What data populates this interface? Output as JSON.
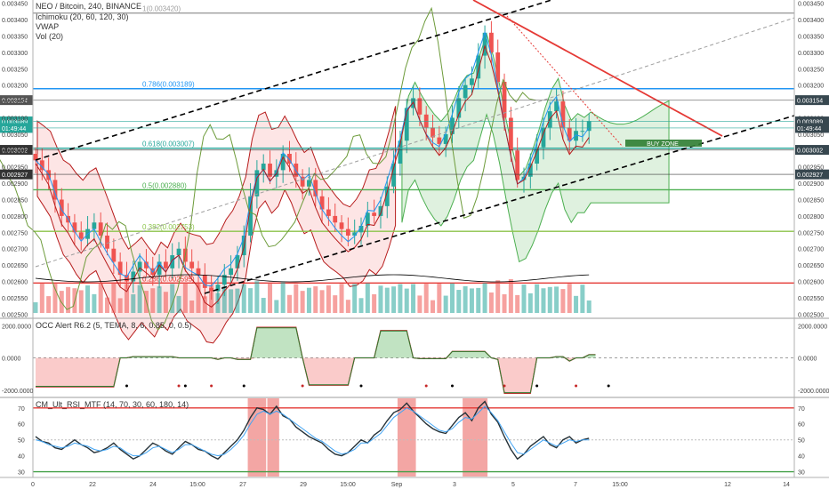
{
  "chart_data": [
    {
      "type": "line",
      "title": "NEO / Bitcoin, 240, BINANCE",
      "indicators": [
        "Ichimoku (20, 60, 120, 30)",
        "VWAP",
        "Vol (20)"
      ],
      "x_tick_labels": [
        "0",
        "22",
        "24",
        "15:00",
        "27",
        "29",
        "15:00",
        "Sep",
        "3",
        "5",
        "7",
        "15:00",
        "12",
        "14"
      ],
      "y_tick_labels": [
        "0.003450",
        "0.003400",
        "0.003350",
        "0.003300",
        "0.003250",
        "0.003200",
        "0.003150",
        "0.003100",
        "0.003050",
        "0.003000",
        "0.002950",
        "0.002900",
        "0.002850",
        "0.002800",
        "0.002750",
        "0.002700",
        "0.002650",
        "0.002600",
        "0.002550",
        "0.002500"
      ],
      "ylim": [
        0.00249,
        0.00346
      ],
      "price_badges": [
        {
          "label": "0.003154",
          "value": 0.003154,
          "color": "#555555"
        },
        {
          "label": "0.003089",
          "value": 0.003089,
          "color": "#26a69a"
        },
        {
          "label": "01:49:44",
          "value": 0.003069,
          "color": "#26a69a"
        },
        {
          "label": "0.003002",
          "value": 0.003002,
          "color": "#333333"
        },
        {
          "label": "0.002927",
          "value": 0.002927,
          "color": "#333333"
        }
      ],
      "right_labels": [
        {
          "label": "0.003154",
          "value": 0.003154
        },
        {
          "label": "0.003089",
          "value": 0.003089
        },
        {
          "label": "01:49:44",
          "value": 0.003069
        },
        {
          "label": "0.003002",
          "value": 0.003002
        },
        {
          "label": "0.002927",
          "value": 0.002927
        }
      ],
      "fib_levels": [
        {
          "label": "1(0.003420)",
          "value": 0.00342,
          "color": "#9e9e9e"
        },
        {
          "label": "0.786(0.003189)",
          "value": 0.003189,
          "color": "#2196f3"
        },
        {
          "label": "0.618(0.003007)",
          "value": 0.003007,
          "color": "#26a69a"
        },
        {
          "label": "0.5(0.002880)",
          "value": 0.00288,
          "color": "#4caf50"
        },
        {
          "label": "0.382(0.002753)",
          "value": 0.002753,
          "color": "#8bc34a"
        },
        {
          "label": "0.236(0.002595)",
          "value": 0.002595,
          "color": "#e53935"
        }
      ],
      "buy_zone_label": "BUY ZONE",
      "close_series": [
        0.00297,
        0.00294,
        0.00291,
        0.00285,
        0.0028,
        0.00278,
        0.00275,
        0.00273,
        0.00276,
        0.00278,
        0.00274,
        0.0027,
        0.00266,
        0.00262,
        0.0026,
        0.00263,
        0.00266,
        0.00264,
        0.00262,
        0.00266,
        0.00264,
        0.00268,
        0.0027,
        0.00266,
        0.00264,
        0.00262,
        0.00258,
        0.00257,
        0.00259,
        0.00262,
        0.00264,
        0.00268,
        0.00274,
        0.00286,
        0.00294,
        0.00296,
        0.00292,
        0.00294,
        0.00299,
        0.00296,
        0.00292,
        0.00289,
        0.00291,
        0.00286,
        0.00282,
        0.0028,
        0.00278,
        0.00276,
        0.00274,
        0.00275,
        0.00277,
        0.00281,
        0.0028,
        0.00283,
        0.00289,
        0.00296,
        0.00303,
        0.00313,
        0.00316,
        0.00311,
        0.00307,
        0.00304,
        0.00302,
        0.00305,
        0.0031,
        0.00316,
        0.0032,
        0.00322,
        0.00329,
        0.00336,
        0.0033,
        0.00321,
        0.0031,
        0.003,
        0.00291,
        0.00292,
        0.00296,
        0.00301,
        0.00307,
        0.00312,
        0.00315,
        0.00307,
        0.00303,
        0.00306,
        0.00306,
        0.00309
      ]
    },
    {
      "type": "line",
      "title": "OCC Alert R6.2 (5, TEMA, 8, 6, 0.85, 0, 0.5)",
      "y_tick_labels": [
        "2000.0000",
        "0.0000",
        "-2000.0000"
      ],
      "ylim": [
        -2400,
        2400
      ],
      "values": [
        -1800,
        -1800,
        -1800,
        -1800,
        -1800,
        -1800,
        -1800,
        -1800,
        -1800,
        -1800,
        -1800,
        -1800,
        -1800,
        0,
        0,
        80,
        80,
        80,
        80,
        80,
        80,
        80,
        0,
        0,
        0,
        0,
        0,
        0,
        -100,
        0,
        0,
        -100,
        -100,
        -100,
        1900,
        1900,
        1900,
        1900,
        1900,
        1900,
        1900,
        0,
        -1700,
        -1700,
        -1700,
        -1700,
        -1700,
        -1700,
        -1700,
        0,
        0,
        0,
        0,
        1700,
        1700,
        1700,
        1700,
        1700,
        0,
        -50,
        -50,
        -50,
        -50,
        -50,
        400,
        400,
        400,
        400,
        400,
        400,
        0,
        -100,
        -2200,
        -2200,
        -2200,
        -2200,
        -2200,
        0,
        0,
        0,
        80,
        80,
        -200,
        0,
        0,
        200,
        200
      ]
    },
    {
      "type": "line",
      "title": "CM_Ult_RSI_MTF (14, 70, 30, 60, 180, 14)",
      "y_tick_labels": [
        "70",
        "60",
        "50",
        "40",
        "30"
      ],
      "ylim": [
        27,
        76
      ],
      "overbought": 70,
      "oversold": 30,
      "series": [
        {
          "values": [
            52,
            49,
            48,
            45,
            44,
            47,
            50,
            47,
            45,
            42,
            43,
            45,
            48,
            44,
            41,
            38,
            40,
            44,
            48,
            46,
            43,
            41,
            45,
            49,
            47,
            44,
            43,
            40,
            38,
            42,
            46,
            50,
            56,
            64,
            70,
            69,
            66,
            71,
            65,
            63,
            58,
            55,
            52,
            50,
            48,
            44,
            41,
            40,
            42,
            46,
            50,
            48,
            53,
            56,
            62,
            67,
            69,
            73,
            68,
            64,
            60,
            57,
            55,
            54,
            59,
            64,
            67,
            62,
            70,
            74,
            66,
            61,
            52,
            44,
            38,
            41,
            46,
            49,
            52,
            47,
            45,
            50,
            52,
            48,
            50,
            51
          ]
        },
        {
          "values": [
            50,
            49,
            47,
            46,
            45,
            46,
            48,
            47,
            46,
            44,
            43,
            44,
            46,
            45,
            42,
            40,
            40,
            42,
            45,
            46,
            44,
            42,
            44,
            47,
            47,
            45,
            43,
            41,
            40,
            41,
            44,
            48,
            53,
            60,
            66,
            68,
            66,
            68,
            66,
            63,
            60,
            57,
            54,
            51,
            49,
            46,
            43,
            41,
            42,
            44,
            48,
            48,
            51,
            54,
            59,
            64,
            67,
            70,
            68,
            65,
            62,
            59,
            56,
            55,
            57,
            61,
            64,
            63,
            67,
            71,
            67,
            62,
            55,
            48,
            42,
            41,
            44,
            47,
            50,
            48,
            46,
            48,
            50,
            49,
            50,
            50
          ]
        }
      ],
      "highlight_bands": [
        [
          33,
          35
        ],
        [
          36,
          37
        ],
        [
          56,
          58
        ],
        [
          66,
          69
        ]
      ]
    }
  ],
  "colors": {
    "bull": "#26a69a",
    "bear": "#ef5350",
    "cloud_bull": "#4caf50",
    "cloud_bear": "#ef5350",
    "tenkan": "#2196f3",
    "kijun": "#b71c1c",
    "chikou": "#6d9b3a",
    "vwap": "#000000"
  }
}
